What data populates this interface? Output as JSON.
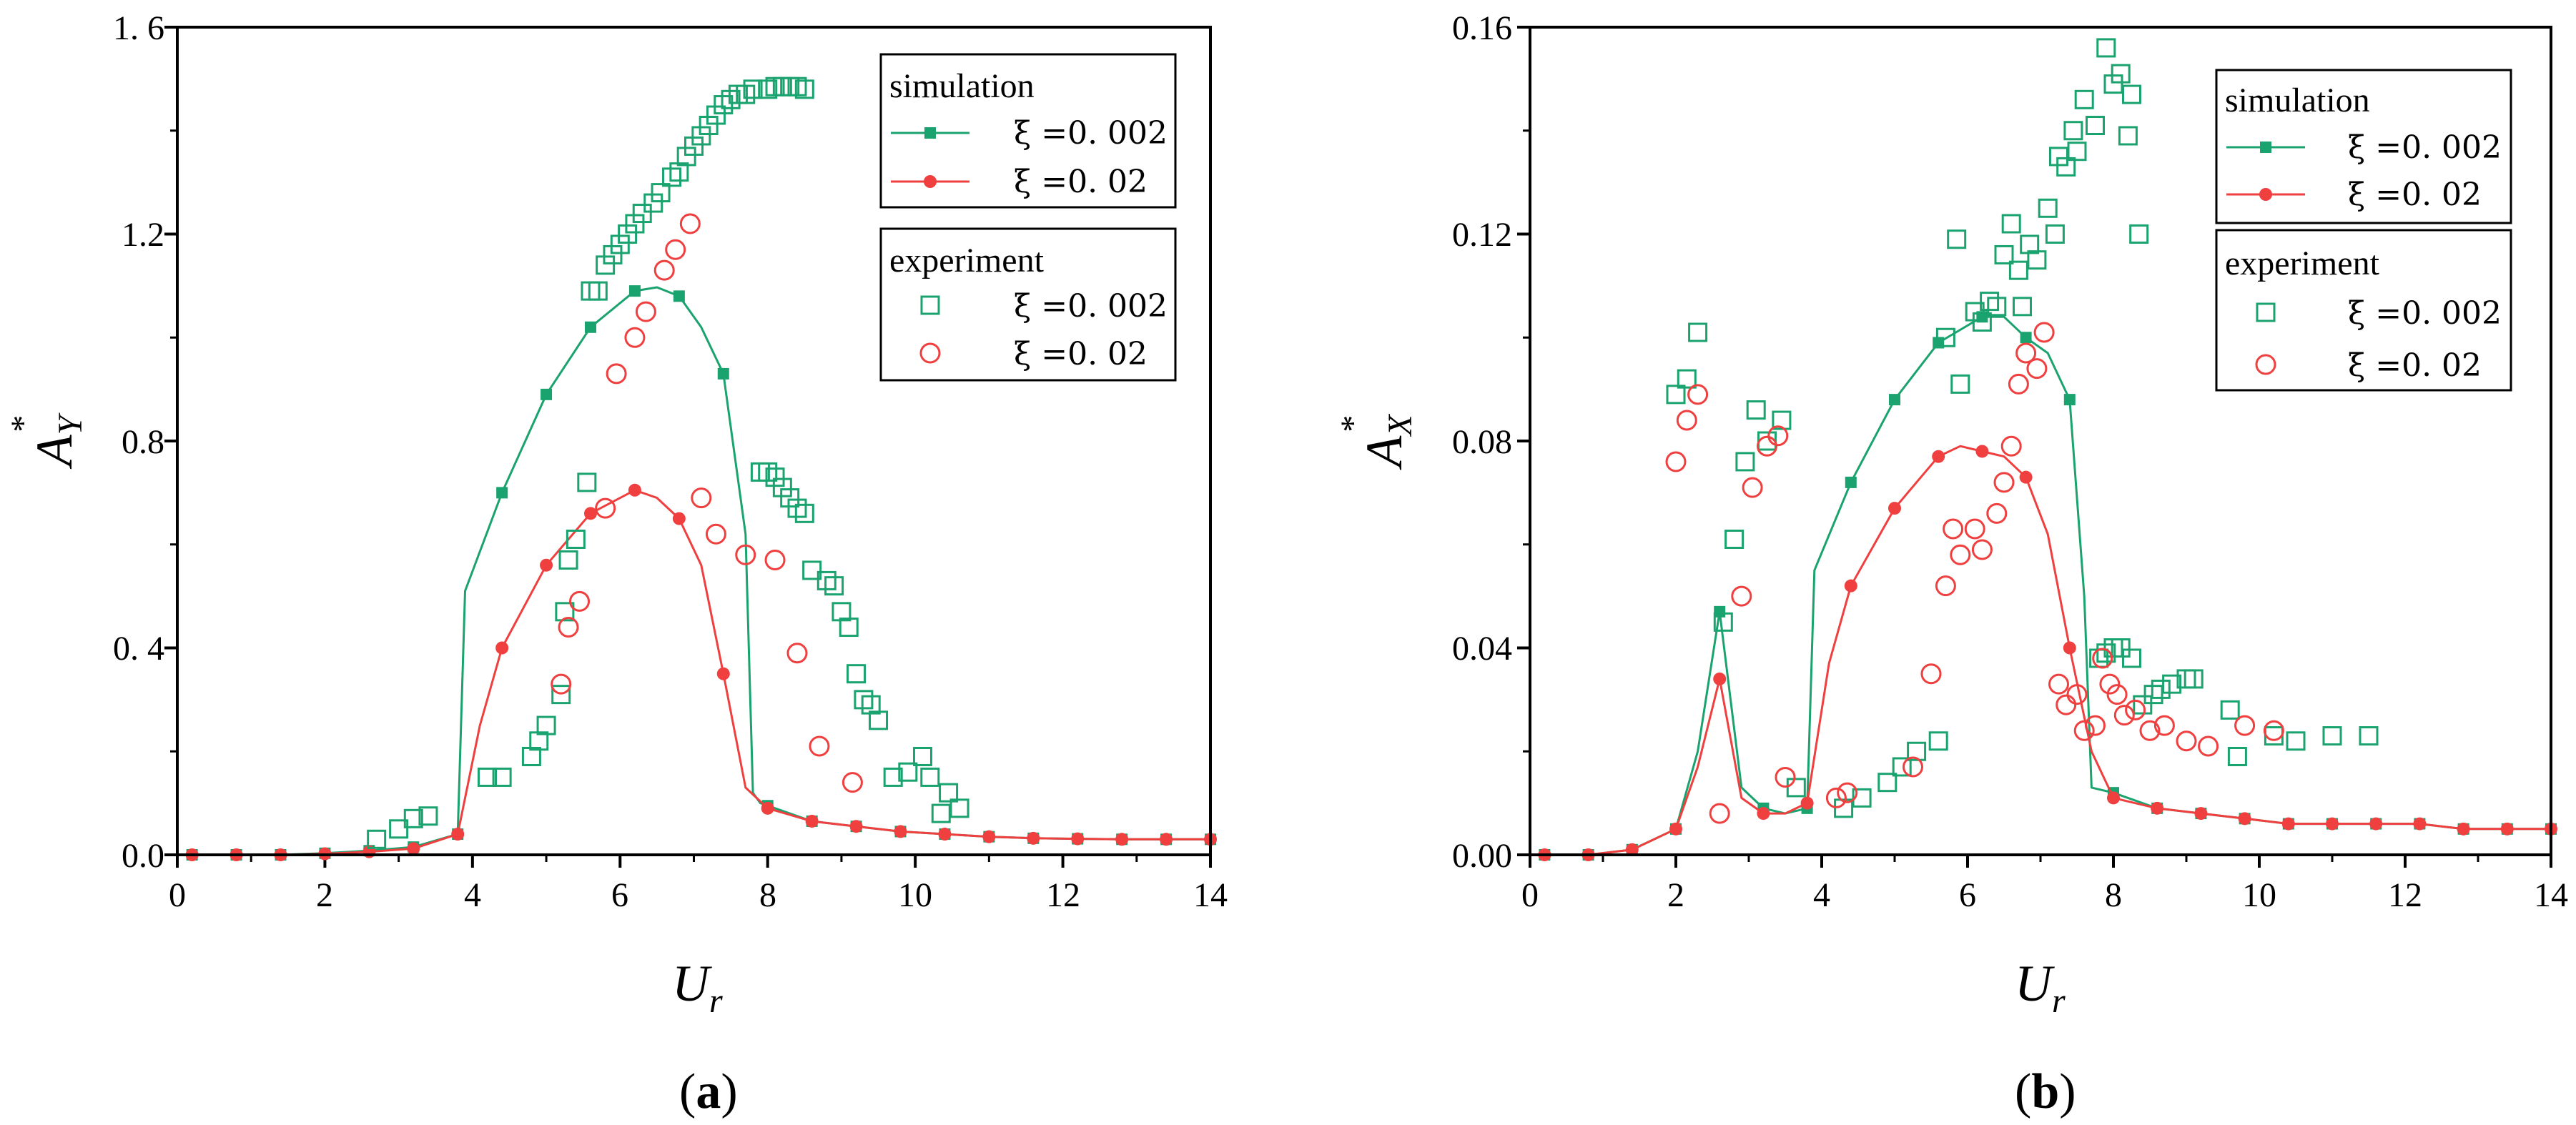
{
  "colors": {
    "green": "#1aa36f",
    "red": "#ef3f3f",
    "axis": "#000000"
  },
  "chart_data": [
    {
      "type": "scatter",
      "panel_label": "a",
      "xlabel": "U",
      "xlabel_sub": "r",
      "ylabel": "A",
      "ylabel_sub": "Y",
      "ylabel_sup": "*",
      "xlim": [
        0,
        14
      ],
      "ylim": [
        0,
        1.6
      ],
      "xticks": [
        0,
        2,
        4,
        6,
        8,
        10,
        12,
        14
      ],
      "xtick_labels": [
        "0",
        "2",
        "4",
        "6",
        "8",
        "10",
        "12",
        "14"
      ],
      "yticks": [
        0,
        0.4,
        0.8,
        1.2,
        1.6
      ],
      "ytick_labels": [
        "0.0",
        "0. 4",
        "0.8",
        "1.2",
        "1. 6"
      ],
      "legend_sim_title": "simulation",
      "legend_exp_title": "experiment",
      "series": [
        {
          "name": "ξ =0. 002",
          "group": "simulation",
          "color": "green",
          "marker": "square-filled",
          "line": true,
          "x": [
            0.2,
            0.8,
            1.4,
            2.0,
            2.6,
            3.2,
            3.8,
            3.9,
            4.4,
            5.0,
            5.6,
            6.2,
            6.5,
            6.8,
            7.1,
            7.4,
            7.7,
            7.8,
            7.9,
            8.0,
            8.6,
            9.2,
            9.8,
            10.4,
            11.0,
            11.6,
            12.2,
            12.8,
            13.4,
            14.0
          ],
          "y": [
            0.0,
            0.0,
            0.0,
            0.003,
            0.008,
            0.015,
            0.04,
            0.51,
            0.7,
            0.89,
            1.02,
            1.09,
            1.097,
            1.08,
            1.02,
            0.93,
            0.62,
            0.12,
            0.1,
            0.095,
            0.065,
            0.055,
            0.045,
            0.04,
            0.035,
            0.032,
            0.031,
            0.03,
            0.03,
            0.03
          ],
          "markers": [
            0,
            1,
            2,
            3,
            4,
            5,
            6,
            8,
            9,
            10,
            11,
            13,
            15,
            19,
            20,
            21,
            22,
            23,
            24,
            25,
            26,
            27,
            28,
            29
          ]
        },
        {
          "name": "ξ =0. 02",
          "group": "simulation",
          "color": "red",
          "marker": "circle-filled",
          "line": true,
          "x": [
            0.2,
            0.8,
            1.4,
            2.0,
            2.6,
            3.2,
            3.8,
            4.1,
            4.4,
            5.0,
            5.6,
            6.2,
            6.5,
            6.8,
            7.1,
            7.4,
            7.7,
            8.0,
            8.6,
            9.2,
            9.8,
            10.4,
            11.0,
            11.6,
            12.2,
            12.8,
            13.4,
            14.0
          ],
          "y": [
            0.0,
            0.0,
            0.0,
            0.002,
            0.006,
            0.012,
            0.04,
            0.25,
            0.4,
            0.56,
            0.66,
            0.705,
            0.69,
            0.65,
            0.56,
            0.35,
            0.13,
            0.09,
            0.065,
            0.055,
            0.045,
            0.04,
            0.035,
            0.032,
            0.031,
            0.03,
            0.03,
            0.03
          ],
          "markers": [
            0,
            1,
            2,
            3,
            4,
            5,
            6,
            8,
            9,
            10,
            11,
            13,
            15,
            17,
            18,
            19,
            20,
            21,
            22,
            23,
            24,
            25,
            26,
            27
          ]
        },
        {
          "name": "ξ =0. 002",
          "group": "experiment",
          "color": "green",
          "marker": "square-open",
          "line": false,
          "x": [
            2.7,
            3.0,
            3.2,
            3.4,
            4.2,
            4.4,
            4.8,
            4.9,
            5.0,
            5.2,
            5.25,
            5.3,
            5.4,
            5.55,
            5.6,
            5.7,
            5.8,
            5.9,
            6.0,
            6.1,
            6.2,
            6.3,
            6.45,
            6.55,
            6.7,
            6.8,
            6.9,
            7.0,
            7.1,
            7.2,
            7.3,
            7.4,
            7.5,
            7.6,
            7.7,
            7.8,
            8.0,
            8.1,
            8.2,
            8.3,
            8.4,
            8.5,
            7.9,
            8.0,
            8.1,
            8.2,
            8.3,
            8.4,
            8.5,
            8.6,
            8.8,
            8.9,
            9.0,
            9.1,
            9.2,
            9.3,
            9.4,
            9.5,
            9.7,
            9.9,
            10.1,
            10.2,
            10.35,
            10.45,
            10.6
          ],
          "y": [
            0.03,
            0.05,
            0.07,
            0.075,
            0.15,
            0.15,
            0.19,
            0.22,
            0.25,
            0.31,
            0.47,
            0.57,
            0.61,
            0.72,
            1.09,
            1.09,
            1.14,
            1.16,
            1.18,
            1.2,
            1.22,
            1.24,
            1.26,
            1.28,
            1.31,
            1.32,
            1.35,
            1.37,
            1.39,
            1.41,
            1.43,
            1.45,
            1.46,
            1.47,
            1.47,
            1.48,
            1.48,
            1.485,
            1.485,
            1.485,
            1.485,
            1.48,
            0.74,
            0.74,
            0.73,
            0.71,
            0.69,
            0.67,
            0.66,
            0.55,
            0.53,
            0.52,
            0.47,
            0.44,
            0.35,
            0.3,
            0.29,
            0.26,
            0.15,
            0.16,
            0.19,
            0.15,
            0.08,
            0.12,
            0.09
          ]
        },
        {
          "name": "ξ =0. 02",
          "group": "experiment",
          "color": "red",
          "marker": "circle-open",
          "line": false,
          "x": [
            5.2,
            5.3,
            5.45,
            5.8,
            5.95,
            6.2,
            6.35,
            6.6,
            6.75,
            6.95,
            7.1,
            7.3,
            7.7,
            8.1,
            8.4,
            8.7,
            9.15
          ],
          "y": [
            0.33,
            0.44,
            0.49,
            0.67,
            0.93,
            1.0,
            1.05,
            1.13,
            1.17,
            1.22,
            0.69,
            0.62,
            0.58,
            0.57,
            0.39,
            0.21,
            0.14
          ]
        }
      ]
    },
    {
      "type": "scatter",
      "panel_label": "b",
      "xlabel": "U",
      "xlabel_sub": "r",
      "ylabel": "A",
      "ylabel_sub": "X",
      "ylabel_sup": "*",
      "xlim": [
        0,
        14
      ],
      "ylim": [
        0,
        0.16
      ],
      "xticks": [
        0,
        2,
        4,
        6,
        8,
        10,
        12,
        14
      ],
      "xtick_labels": [
        "0",
        "2",
        "4",
        "6",
        "8",
        "10",
        "12",
        "14"
      ],
      "yticks": [
        0,
        0.04,
        0.08,
        0.12,
        0.16
      ],
      "ytick_labels": [
        "0.00",
        "0.04",
        "0.08",
        "0.12",
        "0.16"
      ],
      "legend_sim_title": "simulation",
      "legend_exp_title": "experiment",
      "series": [
        {
          "name": "ξ =0. 002",
          "group": "simulation",
          "color": "green",
          "marker": "square-filled",
          "line": true,
          "x": [
            0.2,
            0.8,
            1.4,
            2.0,
            2.3,
            2.6,
            2.9,
            3.2,
            3.5,
            3.8,
            3.9,
            4.4,
            5.0,
            5.6,
            6.2,
            6.5,
            6.8,
            7.1,
            7.4,
            7.6,
            7.7,
            8.0,
            8.6,
            9.2,
            9.8,
            10.4,
            11.0,
            11.6,
            12.2,
            12.8,
            13.4,
            14.0
          ],
          "y": [
            0.0,
            0.0,
            0.001,
            0.005,
            0.02,
            0.047,
            0.013,
            0.009,
            0.008,
            0.009,
            0.055,
            0.072,
            0.088,
            0.099,
            0.104,
            0.104,
            0.1,
            0.097,
            0.088,
            0.05,
            0.013,
            0.012,
            0.009,
            0.008,
            0.007,
            0.006,
            0.006,
            0.006,
            0.006,
            0.005,
            0.005,
            0.005
          ],
          "markers": [
            0,
            1,
            2,
            3,
            5,
            7,
            9,
            11,
            12,
            13,
            14,
            16,
            18,
            21,
            22,
            23,
            24,
            25,
            26,
            27,
            28,
            29,
            30,
            31
          ]
        },
        {
          "name": "ξ =0. 02",
          "group": "simulation",
          "color": "red",
          "marker": "circle-filled",
          "line": true,
          "x": [
            0.2,
            0.8,
            1.4,
            2.0,
            2.3,
            2.6,
            2.9,
            3.2,
            3.5,
            3.8,
            4.1,
            4.4,
            5.0,
            5.6,
            5.9,
            6.2,
            6.5,
            6.8,
            7.1,
            7.4,
            7.7,
            8.0,
            8.6,
            9.2,
            9.8,
            10.4,
            11.0,
            11.6,
            12.2,
            12.8,
            13.4,
            14.0
          ],
          "y": [
            0.0,
            0.0,
            0.001,
            0.005,
            0.017,
            0.034,
            0.011,
            0.008,
            0.008,
            0.01,
            0.037,
            0.052,
            0.067,
            0.077,
            0.079,
            0.078,
            0.077,
            0.073,
            0.062,
            0.04,
            0.02,
            0.011,
            0.009,
            0.008,
            0.007,
            0.006,
            0.006,
            0.006,
            0.006,
            0.005,
            0.005,
            0.005
          ],
          "markers": [
            0,
            1,
            2,
            3,
            5,
            7,
            9,
            11,
            12,
            13,
            15,
            17,
            19,
            21,
            22,
            23,
            24,
            25,
            26,
            27,
            28,
            29,
            30,
            31
          ]
        },
        {
          "name": "ξ =0. 002",
          "group": "experiment",
          "color": "green",
          "marker": "square-open",
          "line": false,
          "x": [
            2.0,
            2.15,
            2.3,
            2.65,
            2.8,
            2.95,
            3.1,
            3.25,
            3.45,
            3.65,
            4.3,
            4.55,
            4.9,
            5.1,
            5.3,
            5.6,
            5.7,
            5.85,
            5.9,
            6.1,
            6.2,
            6.3,
            6.4,
            6.5,
            6.6,
            6.7,
            6.75,
            6.85,
            6.95,
            7.1,
            7.2,
            7.25,
            7.35,
            7.45,
            7.5,
            7.6,
            7.75,
            7.9,
            8.0,
            8.1,
            8.2,
            8.25,
            8.35,
            7.8,
            7.9,
            8.0,
            8.1,
            8.25,
            8.4,
            8.55,
            8.65,
            8.8,
            9.0,
            9.1,
            9.6,
            9.7,
            10.2,
            10.5,
            11.0,
            11.5
          ],
          "y": [
            0.089,
            0.092,
            0.101,
            0.045,
            0.061,
            0.076,
            0.086,
            0.08,
            0.084,
            0.013,
            0.009,
            0.011,
            0.014,
            0.017,
            0.02,
            0.022,
            0.1,
            0.119,
            0.091,
            0.105,
            0.103,
            0.107,
            0.106,
            0.116,
            0.122,
            0.113,
            0.106,
            0.118,
            0.115,
            0.125,
            0.12,
            0.135,
            0.133,
            0.14,
            0.136,
            0.146,
            0.141,
            0.156,
            0.149,
            0.151,
            0.139,
            0.147,
            0.12,
            0.038,
            0.039,
            0.04,
            0.04,
            0.038,
            0.029,
            0.031,
            0.032,
            0.033,
            0.034,
            0.034,
            0.028,
            0.019,
            0.023,
            0.022,
            0.023,
            0.023
          ]
        },
        {
          "name": "ξ =0. 02",
          "group": "experiment",
          "color": "red",
          "marker": "circle-open",
          "line": false,
          "x": [
            2.0,
            2.15,
            2.3,
            2.6,
            2.9,
            3.05,
            3.25,
            3.4,
            3.5,
            4.2,
            4.35,
            5.25,
            5.5,
            5.7,
            5.8,
            5.9,
            6.1,
            6.2,
            6.4,
            6.5,
            6.6,
            6.7,
            6.8,
            6.95,
            7.05,
            7.25,
            7.35,
            7.5,
            7.6,
            7.75,
            7.85,
            7.95,
            8.05,
            8.15,
            8.3,
            8.5,
            8.7,
            9.0,
            9.3,
            9.8,
            10.2
          ],
          "y": [
            0.076,
            0.084,
            0.089,
            0.008,
            0.05,
            0.071,
            0.079,
            0.081,
            0.015,
            0.011,
            0.012,
            0.017,
            0.035,
            0.052,
            0.063,
            0.058,
            0.063,
            0.059,
            0.066,
            0.072,
            0.079,
            0.091,
            0.097,
            0.094,
            0.101,
            0.033,
            0.029,
            0.031,
            0.024,
            0.025,
            0.038,
            0.033,
            0.031,
            0.027,
            0.028,
            0.024,
            0.025,
            0.022,
            0.021,
            0.025,
            0.024
          ]
        }
      ]
    }
  ]
}
